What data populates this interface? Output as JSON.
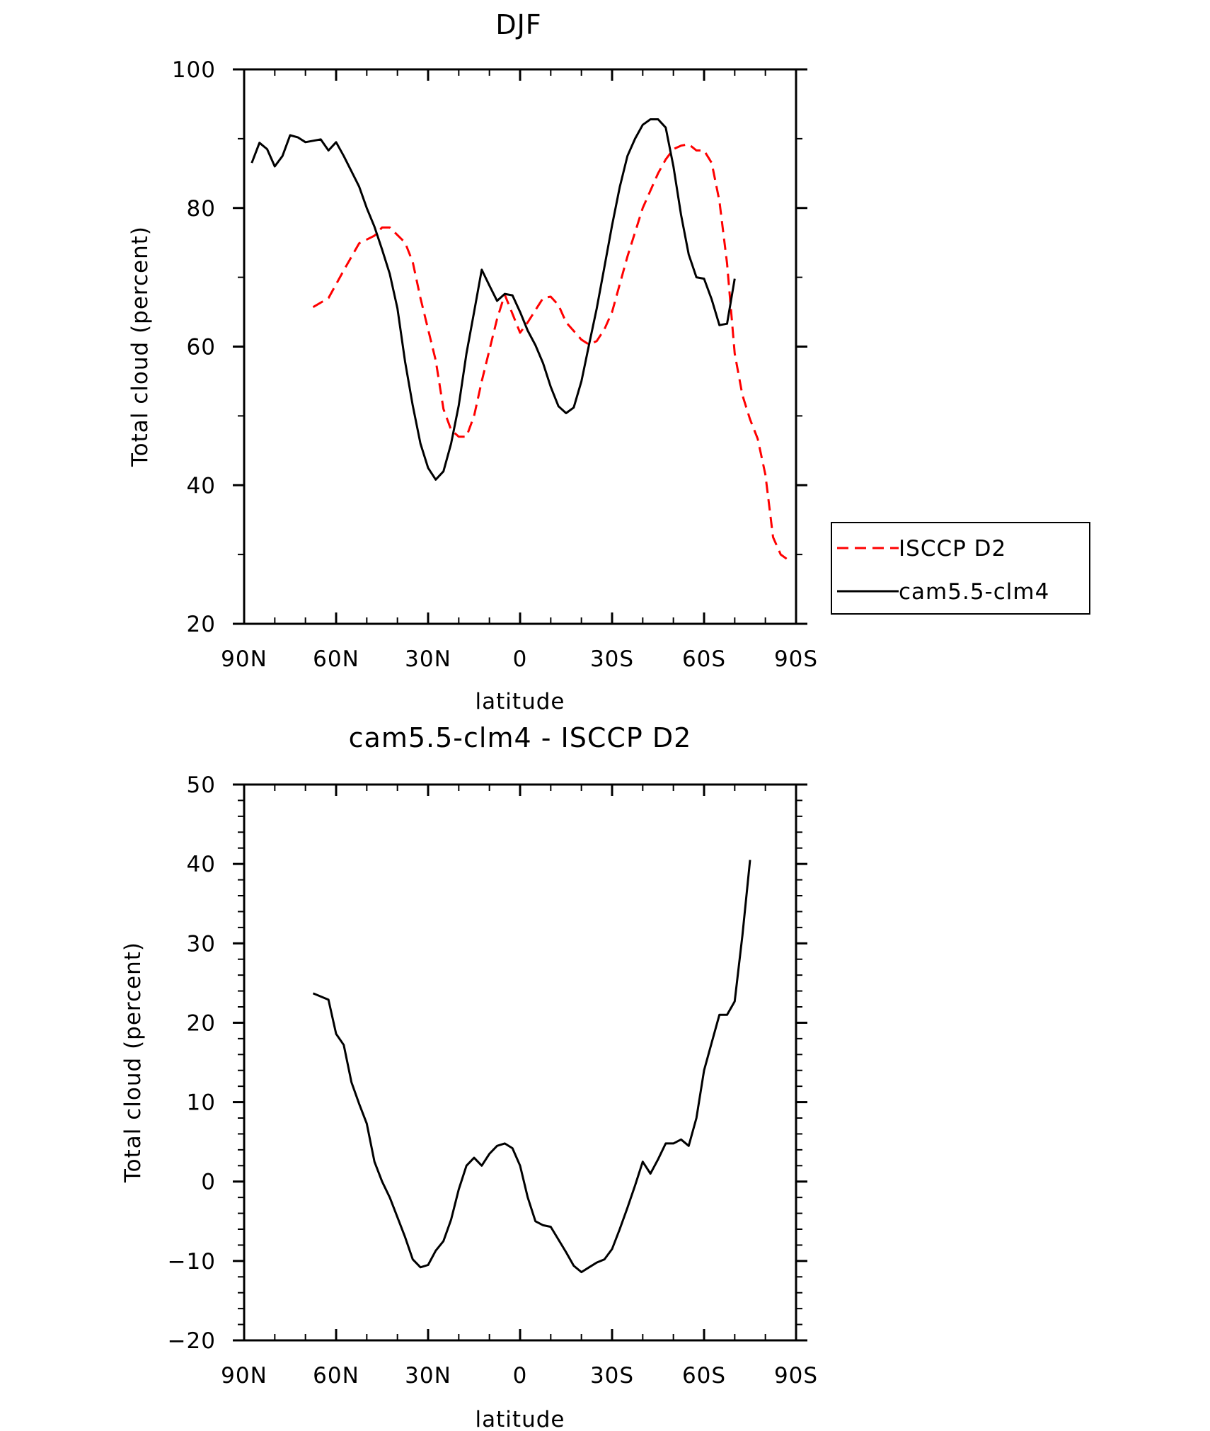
{
  "chart_data": [
    {
      "type": "line",
      "title": "DJF",
      "xlabel": "latitude",
      "ylabel": "Total cloud (percent)",
      "xlim": [
        90,
        -90
      ],
      "ylim": [
        20,
        100
      ],
      "x_ticks": [
        90,
        60,
        30,
        0,
        -30,
        -60,
        -90
      ],
      "x_tick_labels": [
        "90N",
        "60N",
        "30N",
        "0",
        "30S",
        "60S",
        "90S"
      ],
      "y_ticks": [
        20,
        40,
        60,
        80,
        100
      ],
      "y_tick_labels": [
        "20",
        "40",
        "60",
        "80",
        "100"
      ],
      "legend": {
        "position": "right",
        "entries": [
          "ISCCP D2",
          "cam5.5-clm4"
        ]
      },
      "series": [
        {
          "name": "ISCCP D2",
          "color": "#ff0000",
          "dash": "dashed",
          "points": [
            [
              67.5,
              65.7
            ],
            [
              62.5,
              67
            ],
            [
              57.5,
              71
            ],
            [
              52.5,
              74.9
            ],
            [
              47.5,
              76
            ],
            [
              45,
              77.2
            ],
            [
              42.5,
              77.2
            ],
            [
              37.5,
              75
            ],
            [
              35,
              72.2
            ],
            [
              32.5,
              67
            ],
            [
              27.5,
              58
            ],
            [
              25,
              51
            ],
            [
              22.5,
              48
            ],
            [
              20,
              47
            ],
            [
              17.5,
              47
            ],
            [
              15,
              50
            ],
            [
              12.5,
              55
            ],
            [
              7.5,
              64
            ],
            [
              5,
              67.5
            ],
            [
              0,
              62
            ],
            [
              -2.5,
              63.5
            ],
            [
              -7.5,
              67
            ],
            [
              -10,
              67.2
            ],
            [
              -12.5,
              66
            ],
            [
              -15,
              63.5
            ],
            [
              -20,
              61
            ],
            [
              -22.5,
              60.3
            ],
            [
              -25,
              60.8
            ],
            [
              -27.5,
              62.5
            ],
            [
              -30,
              65
            ],
            [
              -35,
              73
            ],
            [
              -40,
              80
            ],
            [
              -45,
              85
            ],
            [
              -47.5,
              87
            ],
            [
              -50,
              88.5
            ],
            [
              -52.5,
              89
            ],
            [
              -55,
              89.2
            ],
            [
              -57.5,
              88.3
            ],
            [
              -60,
              88.3
            ],
            [
              -62.5,
              86.5
            ],
            [
              -65,
              81
            ],
            [
              -67.5,
              72
            ],
            [
              -70,
              59
            ],
            [
              -72.5,
              53
            ],
            [
              -75,
              49.5
            ],
            [
              -77.5,
              46.7
            ],
            [
              -80,
              41.5
            ],
            [
              -82.5,
              32.5
            ],
            [
              -85,
              30
            ],
            [
              -87.5,
              29.2
            ]
          ]
        },
        {
          "name": "cam5.5-clm4",
          "color": "#000000",
          "dash": "solid",
          "points": [
            [
              87.5,
              86.5
            ],
            [
              85,
              89.4
            ],
            [
              82.5,
              88.5
            ],
            [
              80,
              86
            ],
            [
              77.5,
              87.5
            ],
            [
              75,
              90.5
            ],
            [
              72.5,
              90.2
            ],
            [
              70,
              89.5
            ],
            [
              67.5,
              89.7
            ],
            [
              65,
              89.9
            ],
            [
              62.5,
              88.3
            ],
            [
              60,
              89.5
            ],
            [
              57.5,
              87.5
            ],
            [
              55,
              85.3
            ],
            [
              52.5,
              83.1
            ],
            [
              50,
              80
            ],
            [
              47.5,
              77.3
            ],
            [
              45,
              74
            ],
            [
              42.5,
              70.5
            ],
            [
              40,
              65.5
            ],
            [
              37.5,
              57.8
            ],
            [
              35,
              51.5
            ],
            [
              32.5,
              46
            ],
            [
              30,
              42.5
            ],
            [
              27.5,
              40.8
            ],
            [
              25,
              42
            ],
            [
              22.5,
              46
            ],
            [
              20,
              51.5
            ],
            [
              17.5,
              59
            ],
            [
              15,
              65
            ],
            [
              12.5,
              71.1
            ],
            [
              10,
              68.8
            ],
            [
              7.5,
              66.6
            ],
            [
              5,
              67.6
            ],
            [
              2.5,
              67.4
            ],
            [
              0,
              65
            ],
            [
              -2.5,
              62.3
            ],
            [
              -5,
              60.2
            ],
            [
              -7.5,
              57.6
            ],
            [
              -10,
              54.2
            ],
            [
              -12.5,
              51.4
            ],
            [
              -15,
              50.4
            ],
            [
              -17.5,
              51.2
            ],
            [
              -20,
              55
            ],
            [
              -22.5,
              60.3
            ],
            [
              -25,
              65.5
            ],
            [
              -27.5,
              71.5
            ],
            [
              -30,
              77.5
            ],
            [
              -32.5,
              83
            ],
            [
              -35,
              87.5
            ],
            [
              -37.5,
              90
            ],
            [
              -40,
              92
            ],
            [
              -42.5,
              92.8
            ],
            [
              -45,
              92.8
            ],
            [
              -47.5,
              91.6
            ],
            [
              -50,
              86
            ],
            [
              -52.5,
              79
            ],
            [
              -55,
              73.3
            ],
            [
              -57.5,
              70
            ],
            [
              -60,
              69.8
            ],
            [
              -62.5,
              66.8
            ],
            [
              -65,
              63.1
            ],
            [
              -67.5,
              63.3
            ],
            [
              -70,
              69.8
            ]
          ]
        }
      ]
    },
    {
      "type": "line",
      "title": "cam5.5-clm4 - ISCCP D2",
      "xlabel": "latitude",
      "ylabel": "Total cloud (percent)",
      "xlim": [
        90,
        -90
      ],
      "ylim": [
        -20,
        50
      ],
      "x_ticks": [
        90,
        60,
        30,
        0,
        -30,
        -60,
        -90
      ],
      "x_tick_labels": [
        "90N",
        "60N",
        "30N",
        "0",
        "30S",
        "60S",
        "90S"
      ],
      "y_ticks": [
        -20,
        -10,
        0,
        10,
        20,
        30,
        40,
        50
      ],
      "y_tick_labels": [
        "−20",
        "−10",
        "0",
        "10",
        "20",
        "30",
        "40",
        "50"
      ],
      "series": [
        {
          "color": "#000000",
          "dash": "solid",
          "points": [
            [
              67.5,
              23.7
            ],
            [
              62.5,
              22.9
            ],
            [
              60,
              18.6
            ],
            [
              57.5,
              17.2
            ],
            [
              55,
              12.5
            ],
            [
              52.5,
              9.8
            ],
            [
              50,
              7.3
            ],
            [
              47.5,
              2.5
            ],
            [
              45,
              0
            ],
            [
              42.5,
              -2
            ],
            [
              40,
              -4.5
            ],
            [
              37.5,
              -7
            ],
            [
              35,
              -9.8
            ],
            [
              32.5,
              -10.8
            ],
            [
              30,
              -10.5
            ],
            [
              27.5,
              -8.7
            ],
            [
              25,
              -7.5
            ],
            [
              22.5,
              -4.8
            ],
            [
              20,
              -1
            ],
            [
              17.5,
              2
            ],
            [
              15,
              3
            ],
            [
              12.5,
              2
            ],
            [
              10,
              3.5
            ],
            [
              7.5,
              4.5
            ],
            [
              5,
              4.8
            ],
            [
              2.5,
              4.2
            ],
            [
              0,
              2
            ],
            [
              -2.5,
              -2
            ],
            [
              -5,
              -5
            ],
            [
              -7.5,
              -5.5
            ],
            [
              -10,
              -5.7
            ],
            [
              -12.5,
              -7.3
            ],
            [
              -15,
              -8.9
            ],
            [
              -17.5,
              -10.6
            ],
            [
              -20,
              -11.4
            ],
            [
              -22.5,
              -10.8
            ],
            [
              -25,
              -10.2
            ],
            [
              -27.5,
              -9.8
            ],
            [
              -30,
              -8.5
            ],
            [
              -32.5,
              -6
            ],
            [
              -35,
              -3.3
            ],
            [
              -37.5,
              -0.5
            ],
            [
              -40,
              2.5
            ],
            [
              -42.5,
              1
            ],
            [
              -45,
              2.8
            ],
            [
              -47.5,
              4.8
            ],
            [
              -50,
              4.8
            ],
            [
              -52.5,
              5.3
            ],
            [
              -55,
              4.5
            ],
            [
              -57.5,
              8
            ],
            [
              -60,
              14
            ],
            [
              -62.5,
              17.5
            ],
            [
              -65,
              21
            ],
            [
              -67.5,
              21
            ],
            [
              -70,
              22.7
            ],
            [
              -72.5,
              31
            ],
            [
              -75,
              40.5
            ]
          ]
        }
      ]
    }
  ]
}
